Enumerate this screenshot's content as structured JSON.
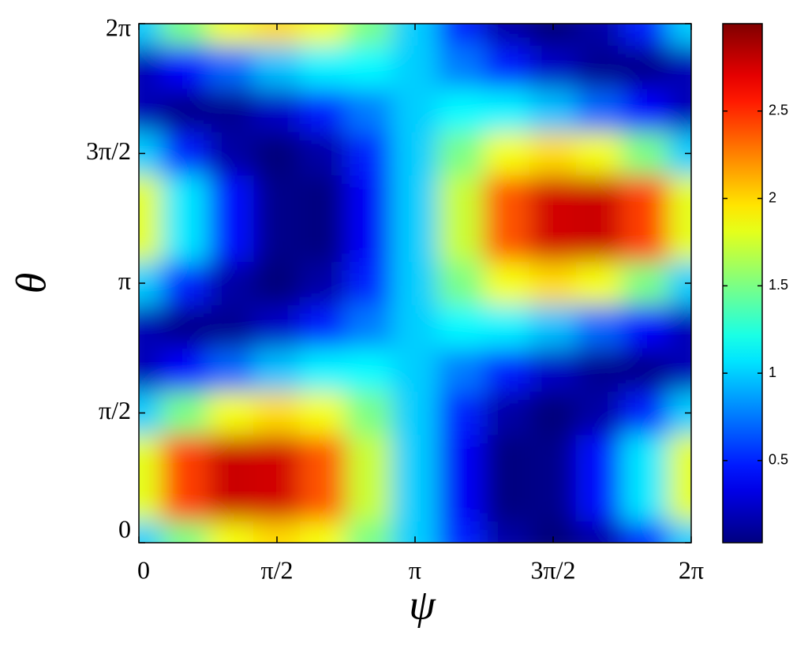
{
  "chart_data": {
    "type": "heatmap",
    "x_label": "ψ",
    "y_label": "θ",
    "x": [
      0,
      0.5236,
      1.0472,
      1.5708,
      2.0944,
      2.618,
      3.1416,
      3.6652,
      4.1888,
      4.7124,
      5.236,
      5.7596,
      6.2832
    ],
    "y": [
      0,
      0.5236,
      1.0472,
      1.5708,
      2.0944,
      2.618,
      3.1416,
      3.6652,
      4.1888,
      4.7124,
      5.236,
      5.7596,
      6.2832
    ],
    "values": [
      [
        1.0,
        1.5,
        1.86,
        1.99,
        1.86,
        1.5,
        1.0,
        0.5,
        0.14,
        0.01,
        0.14,
        0.5,
        1.0
      ],
      [
        1.81,
        2.44,
        2.78,
        2.76,
        2.38,
        1.73,
        1.0,
        0.38,
        0.03,
        0.06,
        0.44,
        1.08,
        1.81
      ],
      [
        1.81,
        2.44,
        2.78,
        2.76,
        2.38,
        1.73,
        1.0,
        0.38,
        0.03,
        0.06,
        0.44,
        1.08,
        1.81
      ],
      [
        1.0,
        1.5,
        1.86,
        1.99,
        1.86,
        1.5,
        1.0,
        0.5,
        0.14,
        0.01,
        0.14,
        0.5,
        1.0
      ],
      [
        0.19,
        0.42,
        0.7,
        0.96,
        1.11,
        1.13,
        1.0,
        0.76,
        0.48,
        0.23,
        0.08,
        0.06,
        0.19
      ],
      [
        0.19,
        0.06,
        0.08,
        0.23,
        0.48,
        0.76,
        1.0,
        1.13,
        1.11,
        0.96,
        0.7,
        0.42,
        0.19
      ],
      [
        1.0,
        0.5,
        0.14,
        0.01,
        0.14,
        0.5,
        1.0,
        1.5,
        1.86,
        1.99,
        1.86,
        1.5,
        1.0
      ],
      [
        1.81,
        1.08,
        0.44,
        0.06,
        0.03,
        0.38,
        1.0,
        1.73,
        2.38,
        2.76,
        2.78,
        2.44,
        1.81
      ],
      [
        1.81,
        1.08,
        0.44,
        0.06,
        0.03,
        0.38,
        1.0,
        1.73,
        2.38,
        2.76,
        2.78,
        2.44,
        1.81
      ],
      [
        1.0,
        0.5,
        0.14,
        0.01,
        0.14,
        0.5,
        1.0,
        1.5,
        1.86,
        1.99,
        1.86,
        1.5,
        1.0
      ],
      [
        0.19,
        0.06,
        0.08,
        0.23,
        0.48,
        0.76,
        1.0,
        1.13,
        1.11,
        0.96,
        0.7,
        0.42,
        0.19
      ],
      [
        0.19,
        0.42,
        0.7,
        0.96,
        1.11,
        1.13,
        1.0,
        0.76,
        0.48,
        0.23,
        0.08,
        0.06,
        0.19
      ],
      [
        1.0,
        1.5,
        1.86,
        1.99,
        1.86,
        1.5,
        1.0,
        0.5,
        0.14,
        0.01,
        0.14,
        0.5,
        1.0
      ]
    ],
    "xlim": [
      0,
      6.2832
    ],
    "ylim": [
      0,
      6.2832
    ],
    "xticks": [
      0,
      {
        "value": 1.5708,
        "label": "π/2"
      },
      {
        "value": 3.1416,
        "label": "π"
      },
      {
        "value": 4.7124,
        "label": "3π/2"
      },
      {
        "value": 6.2832,
        "label": "2π"
      }
    ],
    "yticks": [
      0,
      {
        "value": 1.5708,
        "label": "π/2"
      },
      {
        "value": 3.1416,
        "label": "π"
      },
      {
        "value": 4.7124,
        "label": "3π/2"
      },
      {
        "value": 6.2832,
        "label": "2π"
      }
    ],
    "colormap": "jet",
    "zlim": [
      0.03,
      3
    ],
    "zticks": [
      0.5,
      1,
      1.5,
      2,
      2.5
    ]
  }
}
